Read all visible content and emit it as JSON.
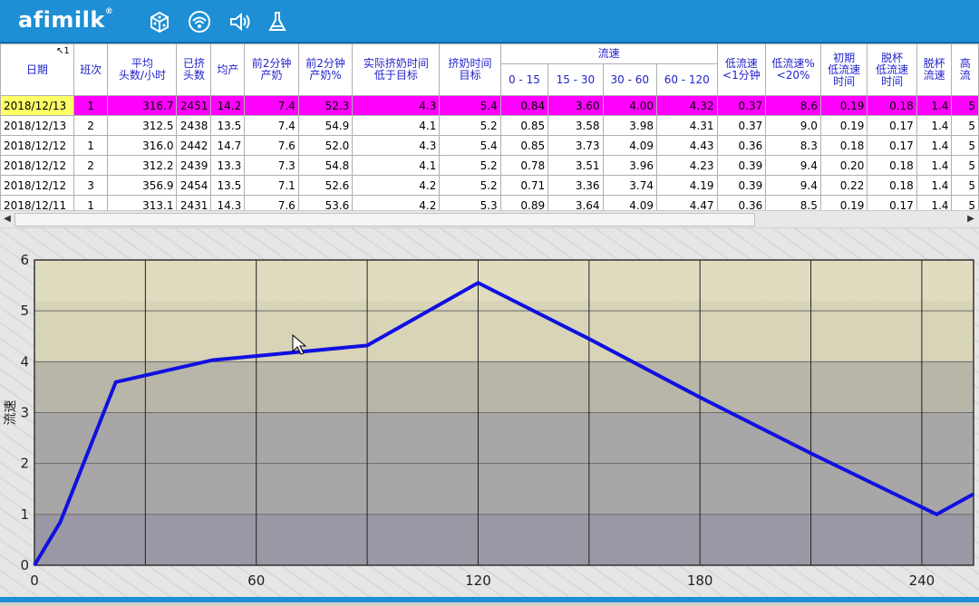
{
  "app": {
    "logo": "afimilk",
    "logo_mark": "®"
  },
  "toolbar": {
    "icons": [
      "cow-dice-icon",
      "wifi-signal-icon",
      "speaker-icon",
      "flask-icon"
    ]
  },
  "table": {
    "sort_indicator": "↖1",
    "columns": [
      {
        "key": "date",
        "label": "日期"
      },
      {
        "key": "shift",
        "label": "班次"
      },
      {
        "key": "avg_heads",
        "label": "平均\n头数/小时"
      },
      {
        "key": "milked",
        "label": "已挤\n头数"
      },
      {
        "key": "avg_yield",
        "label": "均产"
      },
      {
        "key": "first2_yield",
        "label": "前2分钟\n产奶"
      },
      {
        "key": "first2_pct",
        "label": "前2分钟\n产奶%"
      },
      {
        "key": "actual_time",
        "label": "实际挤奶时间\n低于目标"
      },
      {
        "key": "target_time",
        "label": "挤奶时间\n目标"
      },
      {
        "key": "f0_15",
        "label": "0 - 15"
      },
      {
        "key": "f15_30",
        "label": "15 - 30"
      },
      {
        "key": "f30_60",
        "label": "30 - 60"
      },
      {
        "key": "f60_120",
        "label": "60 - 120"
      },
      {
        "key": "low_flow_1min",
        "label": "低流速\n<1分钟"
      },
      {
        "key": "low_flow_pct",
        "label": "低流速%\n<20%"
      },
      {
        "key": "init_low",
        "label": "初期\n低流速\n时间"
      },
      {
        "key": "detach_low",
        "label": "脱杯\n低流速\n时间"
      },
      {
        "key": "detach_flow",
        "label": "脱杯\n流速"
      },
      {
        "key": "high_flow",
        "label": "高\n流"
      }
    ],
    "group_header": "流速",
    "rows": [
      [
        "2018/12/13",
        "1",
        "316.7",
        "2451",
        "14.2",
        "7.4",
        "52.3",
        "4.3",
        "5.4",
        "0.84",
        "3.60",
        "4.00",
        "4.32",
        "0.37",
        "8.6",
        "0.19",
        "0.18",
        "1.4",
        "5"
      ],
      [
        "2018/12/13",
        "2",
        "312.5",
        "2438",
        "13.5",
        "7.4",
        "54.9",
        "4.1",
        "5.2",
        "0.85",
        "3.58",
        "3.98",
        "4.31",
        "0.37",
        "9.0",
        "0.19",
        "0.17",
        "1.4",
        "5"
      ],
      [
        "2018/12/12",
        "1",
        "316.0",
        "2442",
        "14.7",
        "7.6",
        "52.0",
        "4.3",
        "5.4",
        "0.85",
        "3.73",
        "4.09",
        "4.43",
        "0.36",
        "8.3",
        "0.18",
        "0.17",
        "1.4",
        "5"
      ],
      [
        "2018/12/12",
        "2",
        "312.2",
        "2439",
        "13.3",
        "7.3",
        "54.8",
        "4.1",
        "5.2",
        "0.78",
        "3.51",
        "3.96",
        "4.23",
        "0.39",
        "9.4",
        "0.20",
        "0.18",
        "1.4",
        "5"
      ],
      [
        "2018/12/12",
        "3",
        "356.9",
        "2454",
        "13.5",
        "7.1",
        "52.6",
        "4.2",
        "5.2",
        "0.71",
        "3.36",
        "3.74",
        "4.19",
        "0.39",
        "9.4",
        "0.22",
        "0.18",
        "1.4",
        "5"
      ],
      [
        "2018/12/11",
        "1",
        "313.1",
        "2431",
        "14.3",
        "7.6",
        "53.6",
        "4.2",
        "5.3",
        "0.89",
        "3.64",
        "4.09",
        "4.47",
        "0.36",
        "8.5",
        "0.19",
        "0.17",
        "1.4",
        "5"
      ]
    ],
    "selected_row": 0
  },
  "chart_data": {
    "type": "line",
    "ylabel": "流速",
    "xlabel": "",
    "x_ticks": [
      0,
      60,
      120,
      180,
      240
    ],
    "y_ticks": [
      0,
      1,
      2,
      3,
      4,
      5,
      6
    ],
    "xlim": [
      0,
      254
    ],
    "ylim": [
      0,
      6
    ],
    "band_colors": [
      "#e0dcc0",
      "#d8d4b8",
      "#b8b6a8",
      "#a8a6a6",
      "#9a98a4"
    ],
    "line_color": "#1010e0",
    "series": [
      {
        "name": "",
        "x": [
          0,
          7,
          22,
          48,
          90,
          120,
          150,
          180,
          210,
          244,
          254
        ],
        "y": [
          0,
          0.85,
          3.6,
          4.03,
          4.32,
          5.55,
          4.45,
          3.3,
          2.2,
          1.0,
          1.4
        ]
      }
    ]
  }
}
